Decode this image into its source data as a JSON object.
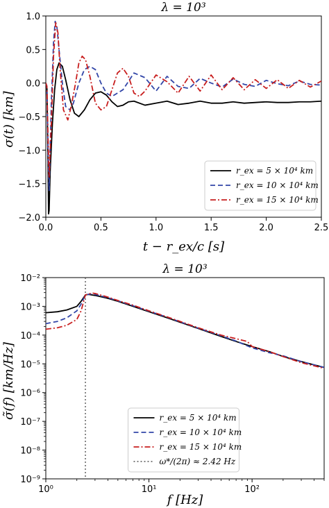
{
  "chart_data": [
    {
      "type": "line",
      "title": "λ = 10³",
      "xlabel": "t − r_ex/c [s]",
      "ylabel": "σ(t) [km]",
      "xlim": [
        0,
        2.5
      ],
      "ylim": [
        -2.0,
        1.0
      ],
      "x_ticks": [
        0.0,
        0.5,
        1.0,
        1.5,
        2.0,
        2.5
      ],
      "x_tick_labels": [
        "0.0",
        "0.5",
        "1.0",
        "1.5",
        "2.0",
        "2.5"
      ],
      "y_ticks": [
        -2.0,
        -1.5,
        -1.0,
        -0.5,
        0.0,
        0.5,
        1.0
      ],
      "y_tick_labels": [
        "−2.0",
        "−1.5",
        "−1.0",
        "−0.5",
        "0.0",
        "0.5",
        "1.0"
      ],
      "legend_position": "lower-right",
      "series": [
        {
          "name": "r_ex = 5 × 10⁴ km",
          "color": "#000000",
          "dash": "solid",
          "x": [
            0,
            0.01,
            0.02,
            0.025,
            0.03,
            0.04,
            0.06,
            0.08,
            0.1,
            0.12,
            0.15,
            0.18,
            0.22,
            0.26,
            0.3,
            0.35,
            0.4,
            0.45,
            0.5,
            0.55,
            0.6,
            0.65,
            0.7,
            0.75,
            0.8,
            0.9,
            1.0,
            1.1,
            1.2,
            1.3,
            1.4,
            1.5,
            1.6,
            1.7,
            1.8,
            1.9,
            2.0,
            2.1,
            2.2,
            2.3,
            2.4,
            2.5
          ],
          "y": [
            0,
            -0.05,
            -1.2,
            -1.95,
            -1.9,
            -1.3,
            -0.6,
            -0.1,
            0.2,
            0.3,
            0.25,
            0.05,
            -0.25,
            -0.45,
            -0.5,
            -0.4,
            -0.25,
            -0.15,
            -0.13,
            -0.18,
            -0.28,
            -0.35,
            -0.33,
            -0.28,
            -0.27,
            -0.33,
            -0.3,
            -0.27,
            -0.32,
            -0.3,
            -0.27,
            -0.3,
            -0.3,
            -0.28,
            -0.3,
            -0.29,
            -0.28,
            -0.29,
            -0.29,
            -0.28,
            -0.28,
            -0.27
          ]
        },
        {
          "name": "r_ex = 10 × 10⁴ km",
          "color": "#3246a8",
          "dash": "dashed",
          "x": [
            0,
            0.01,
            0.02,
            0.03,
            0.05,
            0.07,
            0.085,
            0.1,
            0.12,
            0.15,
            0.18,
            0.22,
            0.25,
            0.3,
            0.35,
            0.4,
            0.45,
            0.5,
            0.55,
            0.6,
            0.7,
            0.8,
            0.9,
            1.0,
            1.1,
            1.2,
            1.3,
            1.4,
            1.5,
            1.6,
            1.7,
            1.8,
            1.9,
            2.0,
            2.1,
            2.2,
            2.3,
            2.4,
            2.5
          ],
          "y": [
            0,
            -0.05,
            -1.0,
            -1.6,
            -0.3,
            0.6,
            0.92,
            0.85,
            0.5,
            0.0,
            -0.35,
            -0.4,
            -0.3,
            0.0,
            0.2,
            0.25,
            0.2,
            0.0,
            -0.15,
            -0.2,
            -0.1,
            0.15,
            0.08,
            -0.12,
            0.1,
            -0.05,
            -0.08,
            0.07,
            0.0,
            -0.06,
            0.06,
            -0.02,
            -0.05,
            0.04,
            -0.01,
            -0.04,
            0.03,
            -0.02,
            -0.03
          ]
        },
        {
          "name": "r_ex = 15 × 10⁴ km",
          "color": "#c81e1e",
          "dash": "dashdot",
          "x": [
            0,
            0.01,
            0.02,
            0.03,
            0.05,
            0.07,
            0.09,
            0.11,
            0.13,
            0.16,
            0.2,
            0.23,
            0.27,
            0.3,
            0.33,
            0.36,
            0.4,
            0.45,
            0.5,
            0.55,
            0.6,
            0.65,
            0.7,
            0.75,
            0.8,
            0.85,
            0.9,
            1.0,
            1.1,
            1.2,
            1.3,
            1.4,
            1.5,
            1.6,
            1.7,
            1.8,
            1.9,
            2.0,
            2.1,
            2.2,
            2.3,
            2.4,
            2.5
          ],
          "y": [
            0,
            -0.05,
            -0.8,
            -1.4,
            -0.6,
            0.4,
            0.9,
            0.75,
            0.2,
            -0.4,
            -0.55,
            -0.35,
            0.0,
            0.3,
            0.4,
            0.35,
            0.1,
            -0.3,
            -0.4,
            -0.35,
            -0.1,
            0.15,
            0.22,
            0.1,
            -0.15,
            -0.2,
            -0.12,
            0.12,
            0.02,
            -0.15,
            0.1,
            -0.12,
            0.12,
            -0.1,
            0.08,
            -0.1,
            0.05,
            -0.08,
            0.05,
            -0.08,
            0.04,
            -0.06,
            0.03
          ]
        }
      ]
    },
    {
      "type": "line",
      "title": "λ = 10³",
      "xlabel": "f [Hz]",
      "ylabel": "σ̃(f) [km/Hz]",
      "xscale": "log",
      "yscale": "log",
      "xlim": [
        1,
        500
      ],
      "ylim": [
        1e-09,
        0.01
      ],
      "x_ticks": [
        1,
        10,
        100
      ],
      "x_tick_labels": [
        "10⁰",
        "10¹",
        "10²"
      ],
      "y_ticks": [
        1e-09,
        1e-08,
        1e-07,
        1e-06,
        1e-05,
        0.0001,
        0.001,
        0.01
      ],
      "y_tick_labels": [
        "10⁻⁹",
        "10⁻⁸",
        "10⁻⁷",
        "10⁻⁶",
        "10⁻⁵",
        "10⁻⁴",
        "10⁻³",
        "10⁻²"
      ],
      "legend_position": "lower-center",
      "vline": {
        "x": 2.42,
        "name": "ω*/(2π) ≈ 2.42 Hz",
        "color": "#555555",
        "dash": "dotted"
      },
      "series": [
        {
          "name": "r_ex = 5 × 10⁴ km",
          "color": "#000000",
          "dash": "solid",
          "x": [
            1,
            1.3,
            1.6,
            2.0,
            2.2,
            2.42,
            2.6,
            3.0,
            4,
            5,
            7,
            10,
            15,
            20,
            30,
            50,
            70,
            100,
            150,
            200,
            300,
            500
          ],
          "y": [
            0.0006,
            0.00065,
            0.00075,
            0.001,
            0.0015,
            0.0025,
            0.0026,
            0.0024,
            0.0019,
            0.0015,
            0.001,
            0.00065,
            0.0004,
            0.00028,
            0.00017,
            9e-05,
            6e-05,
            4e-05,
            2.6e-05,
            1.8e-05,
            1.2e-05,
            7.5e-06
          ]
        },
        {
          "name": "r_ex = 10 × 10⁴ km",
          "color": "#3246a8",
          "dash": "dashed",
          "x": [
            1,
            1.3,
            1.6,
            2.0,
            2.2,
            2.42,
            2.7,
            3.0,
            4,
            5,
            7,
            10,
            15,
            20,
            30,
            50,
            70,
            100,
            150,
            200,
            300,
            500
          ],
          "y": [
            0.00025,
            0.0003,
            0.0004,
            0.0007,
            0.0012,
            0.0025,
            0.0027,
            0.0026,
            0.002,
            0.00155,
            0.00105,
            0.00068,
            0.00042,
            0.00029,
            0.000175,
            9.5e-05,
            6.2e-05,
            3.6e-05,
            2.4e-05,
            1.9e-05,
            1.2e-05,
            7.5e-06
          ]
        },
        {
          "name": "r_ex = 15 × 10⁴ km",
          "color": "#c81e1e",
          "dash": "dashdot",
          "x": [
            1,
            1.3,
            1.6,
            2.0,
            2.2,
            2.42,
            2.8,
            3.0,
            4,
            5,
            7,
            10,
            15,
            20,
            30,
            50,
            70,
            90,
            100,
            150,
            200,
            300,
            500
          ],
          "y": [
            0.00016,
            0.00018,
            0.00022,
            0.00035,
            0.0007,
            0.0025,
            0.0029,
            0.0028,
            0.0021,
            0.0016,
            0.0011,
            0.0007,
            0.00043,
            0.0003,
            0.00018,
            0.0001,
            7.5e-05,
            6e-05,
            4e-05,
            2.6e-05,
            1.8e-05,
            1.1e-05,
            7e-06
          ]
        }
      ]
    }
  ]
}
